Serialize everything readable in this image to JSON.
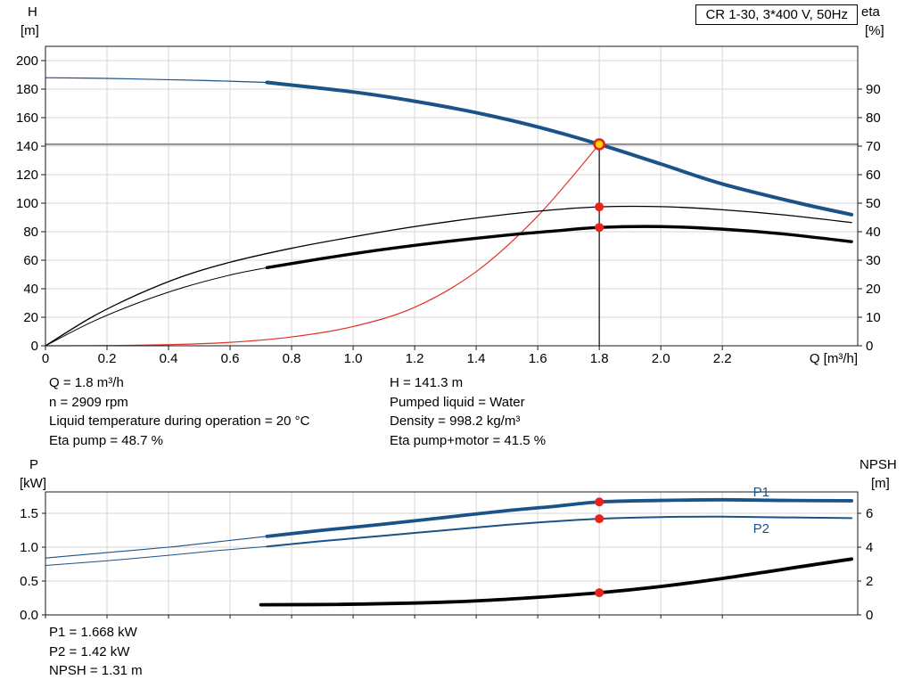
{
  "header": {
    "title_box": "CR 1-30, 3*400 V, 50Hz"
  },
  "info_top": {
    "left": [
      "Q = 1.8 m³/h",
      "n = 2909 rpm",
      "Liquid temperature during operation = 20 °C",
      "Eta pump = 48.7 %"
    ],
    "right": [
      "H = 141.3 m",
      "Pumped liquid = Water",
      "Density = 998.2 kg/m³",
      "Eta pump+motor = 41.5 %"
    ]
  },
  "info_bottom": [
    "P1 = 1.668 kW",
    "P2 = 1.42 kW",
    "NPSH = 1.31 m"
  ],
  "colors": {
    "curve_blue": "#1b5287",
    "curve_black": "#000000",
    "system_red": "#e03127",
    "marker_red": "#e8231e",
    "marker_yellow": "#ffd400",
    "duty_gray": "#8c8c8c",
    "grid": "#d6d6d6",
    "frame": "#1a1a1a",
    "label_blue": "#1b5287"
  },
  "chart_data": [
    {
      "id": "hq-chart",
      "type": "line",
      "title": "CR 1-30, 3*400 V, 50Hz",
      "x_label": "Q [m³/h]",
      "y_left_label": [
        "H",
        "[m]"
      ],
      "y_right_label": [
        "eta",
        "[%]"
      ],
      "x_max": 2.64,
      "y_left_max": 210,
      "left_per_right": 2,
      "x_ticks": [
        0,
        0.2,
        0.4,
        0.6,
        0.8,
        1.0,
        1.2,
        1.4,
        1.6,
        1.8,
        2.0,
        2.2
      ],
      "x_tick_labels": [
        "0",
        "0.2",
        "0.4",
        "0.6",
        "0.8",
        "1.0",
        "1.2",
        "1.4",
        "1.6",
        "1.8",
        "2.0",
        "2.2"
      ],
      "y_left_ticks": [
        0,
        20,
        40,
        60,
        80,
        100,
        120,
        140,
        160,
        180,
        200
      ],
      "y_left_tick_labels": [
        "0",
        "20",
        "40",
        "60",
        "80",
        "100",
        "120",
        "140",
        "160",
        "180",
        "200"
      ],
      "y_right_ticks": [
        0,
        10,
        20,
        30,
        40,
        50,
        60,
        70,
        80,
        90
      ],
      "y_right_tick_labels": [
        "0",
        "10",
        "20",
        "30",
        "40",
        "50",
        "60",
        "70",
        "80",
        "90"
      ],
      "duty_point": {
        "q": 1.8,
        "h": 141.3,
        "eta_pump": 48.7,
        "eta_pump_motor": 41.5
      },
      "series": [
        {
          "name": "duty-head-line",
          "color": "#8c8c8c",
          "width": 2,
          "axis": "left",
          "straight": true,
          "points": [
            [
              0,
              141.3
            ],
            [
              2.64,
              141.3
            ]
          ]
        },
        {
          "name": "duty-flow-line",
          "color": "#1a1a1a",
          "width": 1.3,
          "axis": "left",
          "straight": true,
          "points": [
            [
              1.8,
              0
            ],
            [
              1.8,
              141.3
            ]
          ]
        },
        {
          "name": "system-curve",
          "color": "#e03127",
          "width": 1.2,
          "axis": "left",
          "points": [
            [
              0,
              0
            ],
            [
              0.2,
              0.15
            ],
            [
              0.4,
              0.8
            ],
            [
              0.6,
              2.4
            ],
            [
              0.8,
              6.2
            ],
            [
              1.0,
              13.5
            ],
            [
              1.2,
              27
            ],
            [
              1.4,
              52
            ],
            [
              1.6,
              91
            ],
            [
              1.8,
              141.3
            ]
          ]
        },
        {
          "name": "eta-pump-motor-curve-lowflow",
          "color": "#000000",
          "width": 1,
          "axis": "right",
          "points": [
            [
              0,
              0
            ],
            [
              0.15,
              8.3
            ],
            [
              0.3,
              15
            ],
            [
              0.45,
              20.5
            ],
            [
              0.6,
              24.8
            ],
            [
              0.72,
              27.4
            ]
          ]
        },
        {
          "name": "eta-pump-curve",
          "color": "#000000",
          "width": 1.3,
          "axis": "right",
          "points": [
            [
              0,
              0
            ],
            [
              0.15,
              10
            ],
            [
              0.3,
              18
            ],
            [
              0.45,
              24.5
            ],
            [
              0.6,
              29.3
            ],
            [
              0.8,
              34.2
            ],
            [
              1.0,
              38.2
            ],
            [
              1.2,
              41.8
            ],
            [
              1.4,
              44.8
            ],
            [
              1.6,
              47.2
            ],
            [
              1.8,
              48.7
            ],
            [
              2.0,
              48.8
            ],
            [
              2.2,
              47.7
            ],
            [
              2.4,
              45.9
            ],
            [
              2.62,
              43.2
            ]
          ]
        },
        {
          "name": "eta-pump-motor-curve",
          "color": "#000000",
          "width": 3.4,
          "axis": "right",
          "points": [
            [
              0.72,
              27.4
            ],
            [
              0.9,
              30.6
            ],
            [
              1.1,
              33.8
            ],
            [
              1.3,
              36.5
            ],
            [
              1.5,
              38.8
            ],
            [
              1.65,
              40.2
            ],
            [
              1.8,
              41.5
            ],
            [
              2.0,
              41.8
            ],
            [
              2.2,
              40.9
            ],
            [
              2.4,
              39.2
            ],
            [
              2.62,
              36.5
            ]
          ]
        },
        {
          "name": "pump-curve-lowflow",
          "color": "#1b5287",
          "width": 1.2,
          "axis": "left",
          "points": [
            [
              0,
              188
            ],
            [
              0.2,
              187.5
            ],
            [
              0.4,
              186.6
            ],
            [
              0.56,
              185.8
            ],
            [
              0.72,
              184.7
            ]
          ]
        },
        {
          "name": "pump-curve",
          "color": "#1b5287",
          "width": 4,
          "axis": "left",
          "points": [
            [
              0.72,
              184.7
            ],
            [
              1.0,
              178
            ],
            [
              1.2,
              171.5
            ],
            [
              1.4,
              163.5
            ],
            [
              1.6,
              153.5
            ],
            [
              1.8,
              141.3
            ],
            [
              2.0,
              127.5
            ],
            [
              2.2,
              113.5
            ],
            [
              2.45,
              100
            ],
            [
              2.62,
              92
            ]
          ]
        }
      ],
      "markers": [
        {
          "name": "eta-pump-point",
          "x": 1.8,
          "v": 48.7,
          "axis": "right",
          "r": 5,
          "fill": "#e8231e"
        },
        {
          "name": "eta-pump-motor-point",
          "x": 1.8,
          "v": 41.5,
          "axis": "right",
          "r": 5,
          "fill": "#e8231e"
        },
        {
          "name": "duty-point",
          "x": 1.8,
          "v": 141.3,
          "axis": "left",
          "r": 5.5,
          "fill": "#ffd400",
          "stroke": "#e8231e",
          "stroke_width": 2.6
        }
      ],
      "labels": []
    },
    {
      "id": "power-npsh-chart",
      "type": "line",
      "x_label": "",
      "y_left_label": [
        "P",
        "[kW]"
      ],
      "y_right_label": [
        "NPSH",
        "[m]"
      ],
      "x_max": 2.64,
      "y_left_max": 1.816,
      "left_per_right": 0.25,
      "x_ticks": [
        0,
        0.2,
        0.4,
        0.6,
        0.8,
        1.0,
        1.2,
        1.4,
        1.6,
        1.8,
        2.0,
        2.2
      ],
      "y_left_ticks": [
        0,
        0.5,
        1,
        1.5
      ],
      "y_left_tick_labels": [
        "0.0",
        "0.5",
        "1.0",
        "1.5"
      ],
      "y_right_ticks": [
        0,
        2,
        4,
        6
      ],
      "y_right_tick_labels": [
        "0",
        "2",
        "4",
        "6"
      ],
      "duty_point": {
        "q": 1.8,
        "p1": 1.668,
        "p2": 1.42,
        "npsh": 1.31
      },
      "series": [
        {
          "name": "p1-curve-lowflow",
          "color": "#1b5287",
          "width": 1.1,
          "axis": "left",
          "points": [
            [
              0,
              0.84
            ],
            [
              0.2,
              0.92
            ],
            [
              0.4,
              1.0
            ],
            [
              0.56,
              1.08
            ],
            [
              0.72,
              1.16
            ]
          ]
        },
        {
          "name": "p2-curve-lowflow",
          "color": "#1b5287",
          "width": 1,
          "axis": "left",
          "points": [
            [
              0,
              0.73
            ],
            [
              0.2,
              0.8
            ],
            [
              0.4,
              0.88
            ],
            [
              0.56,
              0.95
            ],
            [
              0.72,
              1.01
            ]
          ]
        },
        {
          "name": "p1-curve",
          "color": "#1b5287",
          "width": 3.8,
          "axis": "left",
          "points": [
            [
              0.72,
              1.16
            ],
            [
              0.9,
              1.25
            ],
            [
              1.1,
              1.34
            ],
            [
              1.3,
              1.44
            ],
            [
              1.5,
              1.54
            ],
            [
              1.65,
              1.6
            ],
            [
              1.8,
              1.668
            ],
            [
              2.0,
              1.69
            ],
            [
              2.2,
              1.7
            ],
            [
              2.4,
              1.69
            ],
            [
              2.62,
              1.685
            ]
          ]
        },
        {
          "name": "p2-curve",
          "color": "#1b5287",
          "width": 2,
          "axis": "left",
          "points": [
            [
              0.72,
              1.01
            ],
            [
              0.9,
              1.09
            ],
            [
              1.1,
              1.17
            ],
            [
              1.3,
              1.25
            ],
            [
              1.5,
              1.33
            ],
            [
              1.65,
              1.38
            ],
            [
              1.8,
              1.42
            ],
            [
              2.0,
              1.445
            ],
            [
              2.2,
              1.45
            ],
            [
              2.4,
              1.44
            ],
            [
              2.62,
              1.43
            ]
          ]
        },
        {
          "name": "npsh-curve",
          "color": "#000000",
          "width": 3.8,
          "axis": "right",
          "points": [
            [
              0.7,
              0.6
            ],
            [
              0.95,
              0.62
            ],
            [
              1.2,
              0.7
            ],
            [
              1.4,
              0.83
            ],
            [
              1.6,
              1.04
            ],
            [
              1.8,
              1.31
            ],
            [
              2.0,
              1.68
            ],
            [
              2.2,
              2.15
            ],
            [
              2.4,
              2.7
            ],
            [
              2.62,
              3.3
            ]
          ]
        }
      ],
      "markers": [
        {
          "name": "p1-point",
          "x": 1.8,
          "v": 1.668,
          "axis": "left",
          "r": 5,
          "fill": "#e8231e"
        },
        {
          "name": "p2-point",
          "x": 1.8,
          "v": 1.42,
          "axis": "left",
          "r": 5,
          "fill": "#e8231e"
        },
        {
          "name": "npsh-point",
          "x": 1.8,
          "v": 1.31,
          "axis": "right",
          "r": 5,
          "fill": "#e8231e"
        }
      ],
      "labels": [
        {
          "name": "p1-label",
          "x": 2.3,
          "v": 1.75,
          "axis": "left",
          "text": "P1",
          "color": "#1b5287"
        },
        {
          "name": "p2-label",
          "x": 2.3,
          "v": 1.21,
          "axis": "left",
          "text": "P2",
          "color": "#1b5287"
        }
      ]
    }
  ]
}
